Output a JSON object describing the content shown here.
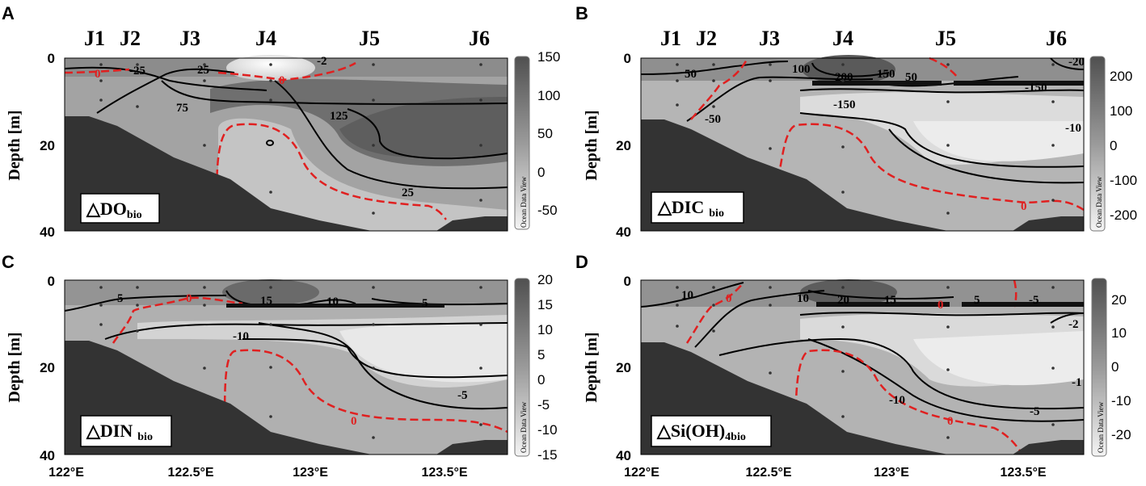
{
  "figure": {
    "stations": [
      "J1",
      "J2",
      "J3",
      "J4",
      "J5",
      "J6"
    ],
    "y_axis_label": "Depth [m]",
    "x_tick_labels": [
      "122°E",
      "122.5°E",
      "123°E",
      "123.5°E"
    ],
    "y_tick_labels": [
      "0",
      "20",
      "40"
    ],
    "watermark": "Ocean Data View"
  },
  "chart_data": [
    {
      "type": "heatmap",
      "panel": "A",
      "variable_label": "△DO",
      "variable_sub": "bio",
      "colorbar": {
        "ticks": [
          150,
          100,
          50,
          0,
          -50
        ],
        "range": [
          -70,
          150
        ]
      },
      "xlim": [
        122,
        123.85
      ],
      "ylim": [
        0,
        40
      ],
      "contour_labels": [
        "-25",
        "25",
        "75",
        "125",
        "25",
        "0",
        "0",
        "-2"
      ],
      "stations_x": [
        122.15,
        122.3,
        122.55,
        122.8,
        123.2,
        123.6
      ]
    },
    {
      "type": "heatmap",
      "panel": "B",
      "variable_label": "△DIC",
      "variable_sub": "bio",
      "colorbar": {
        "ticks": [
          200,
          100,
          0,
          -100,
          -200
        ],
        "range": [
          -250,
          250
        ]
      },
      "xlim": [
        122,
        123.85
      ],
      "ylim": [
        0,
        40
      ],
      "contour_labels": [
        "50",
        "100",
        "200",
        "150",
        "50",
        "-150",
        "-50",
        "-150",
        "-20",
        "-10",
        "0"
      ],
      "stations_x": [
        122.15,
        122.3,
        122.55,
        122.8,
        123.2,
        123.6
      ]
    },
    {
      "type": "heatmap",
      "panel": "C",
      "variable_label": "△DIN",
      "variable_sub": "bio",
      "colorbar": {
        "ticks": [
          20,
          15,
          10,
          5,
          0,
          -5,
          -10,
          -15
        ],
        "range": [
          -15,
          20
        ]
      },
      "xlim": [
        122,
        123.85
      ],
      "ylim": [
        0,
        40
      ],
      "contour_labels": [
        "5",
        "0",
        "15",
        "10",
        "5",
        "-10",
        "-5",
        "0"
      ],
      "stations_x": [
        122.15,
        122.3,
        122.55,
        122.8,
        123.2,
        123.6
      ]
    },
    {
      "type": "heatmap",
      "panel": "D",
      "variable_label": "△Si(OH)",
      "variable_sub": "4bio",
      "colorbar": {
        "ticks": [
          20,
          10,
          0,
          -10,
          -20
        ],
        "range": [
          -25,
          25
        ]
      },
      "xlim": [
        122,
        123.85
      ],
      "ylim": [
        0,
        40
      ],
      "contour_labels": [
        "10",
        "0",
        "10",
        "20",
        "15",
        "0",
        "5",
        "-5",
        "-2",
        "-10",
        "-5",
        "-1",
        "0"
      ],
      "stations_x": [
        122.15,
        122.3,
        122.55,
        122.8,
        123.2,
        123.6
      ]
    }
  ]
}
